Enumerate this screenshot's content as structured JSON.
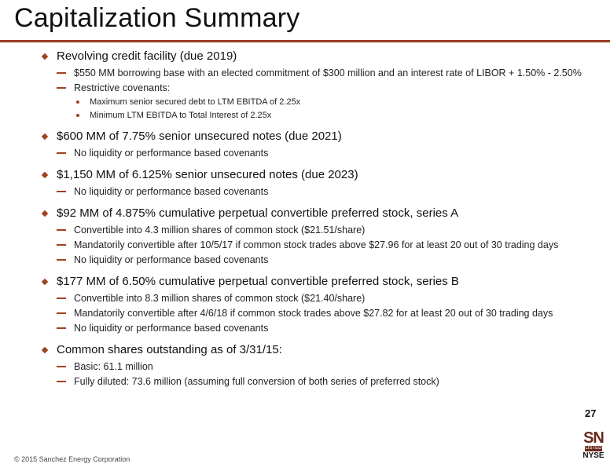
{
  "title": "Capitalization Summary",
  "sections": [
    {
      "heading": "Revolving credit facility (due 2019)",
      "items": [
        {
          "text": "$550 MM borrowing base with an elected commitment of $300 million and an interest rate of LIBOR + 1.50% - 2.50%",
          "subitems": []
        },
        {
          "text": "Restrictive covenants:",
          "subitems": [
            "Maximum senior secured debt to LTM EBITDA of 2.25x",
            "Minimum LTM EBITDA to Total Interest of 2.25x"
          ]
        }
      ]
    },
    {
      "heading": "$600 MM of 7.75% senior unsecured notes (due 2021)",
      "items": [
        {
          "text": "No liquidity or performance based covenants",
          "subitems": []
        }
      ]
    },
    {
      "heading": "$1,150 MM of 6.125% senior unsecured notes (due 2023)",
      "items": [
        {
          "text": "No liquidity or performance based covenants",
          "subitems": []
        }
      ]
    },
    {
      "heading": "$92 MM of 4.875% cumulative perpetual convertible preferred stock, series A",
      "items": [
        {
          "text": "Convertible into 4.3 million shares of common stock ($21.51/share)",
          "subitems": []
        },
        {
          "text": "Mandatorily convertible after 10/5/17 if common stock trades above $27.96 for at least 20 out of 30 trading days",
          "subitems": []
        },
        {
          "text": "No liquidity or performance based covenants",
          "subitems": []
        }
      ]
    },
    {
      "heading": "$177 MM of 6.50% cumulative perpetual convertible preferred stock, series B",
      "items": [
        {
          "text": "Convertible into 8.3 million shares of common stock ($21.40/share)",
          "subitems": []
        },
        {
          "text": "Mandatorily convertible after 4/6/18 if common stock trades above $27.82 for at least 20 out of 30 trading days",
          "subitems": []
        },
        {
          "text": "No liquidity or performance based covenants",
          "subitems": []
        }
      ]
    },
    {
      "heading": "Common shares outstanding as of 3/31/15:",
      "items": [
        {
          "text": "Basic: 61.1 million",
          "subitems": []
        },
        {
          "text": "Fully diluted: 73.6 million (assuming full conversion of both series of preferred stock)",
          "subitems": []
        }
      ]
    }
  ],
  "page_number": "27",
  "logo": {
    "sn": "SN",
    "listed": "LISTED",
    "exchange": "NYSE"
  },
  "copyright": "© 2015 Sanchez Energy Corporation",
  "colors": {
    "accent": "#a0411f",
    "rule": "#9a3a20"
  }
}
